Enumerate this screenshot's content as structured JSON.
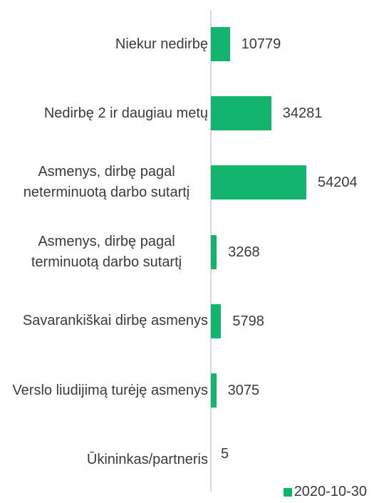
{
  "chart_data": {
    "type": "barh",
    "categories": [
      "Niekur nedirbę",
      "Nedirbę 2 ir daugiau metų",
      "Asmenys, dirbę pagal neterminuotą darbo sutartį",
      "Asmenys, dirbę pagal terminuotą darbo sutartį",
      "Savarankiškai dirbę asmenys",
      "Verslo liudijimą turėję asmenys",
      "Ūkininkas/partneris"
    ],
    "series": [
      {
        "name": "2020-10-30",
        "color": "#13b46e",
        "values": [
          10779,
          34281,
          54204,
          3268,
          5798,
          3075,
          5
        ]
      }
    ],
    "legend": "bottom-right"
  }
}
